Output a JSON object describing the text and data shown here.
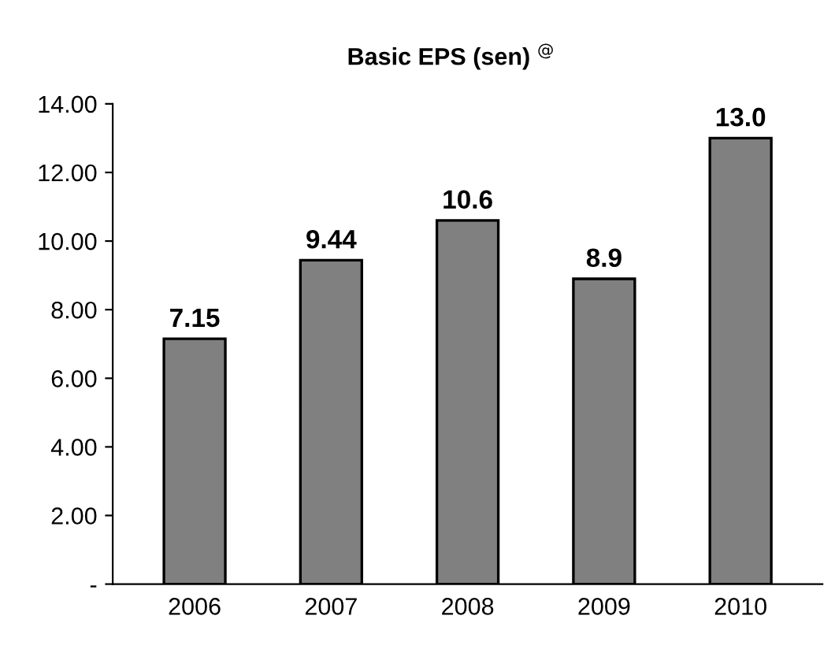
{
  "chart_data": {
    "type": "bar",
    "title": "Basic EPS (sen) $^{@}$",
    "categories": [
      "2006",
      "2007",
      "2008",
      "2009",
      "2010"
    ],
    "values": [
      7.15,
      9.44,
      10.6,
      8.9,
      13.0
    ],
    "value_labels": [
      "7.15",
      "9.44",
      "10.6",
      "8.9",
      "13.0"
    ],
    "color": "#808080",
    "ylim": [
      0,
      14
    ],
    "yticks": [
      {
        "value": 0,
        "label": "-"
      },
      {
        "value": 2,
        "label": "2.00"
      },
      {
        "value": 4,
        "label": "4.00"
      },
      {
        "value": 6,
        "label": "6.00"
      },
      {
        "value": 8,
        "label": "8.00"
      },
      {
        "value": 10,
        "label": "10.00"
      },
      {
        "value": 12,
        "label": "12.00"
      },
      {
        "value": 14,
        "label": "14.00"
      }
    ],
    "grid": false,
    "legend": false
  }
}
